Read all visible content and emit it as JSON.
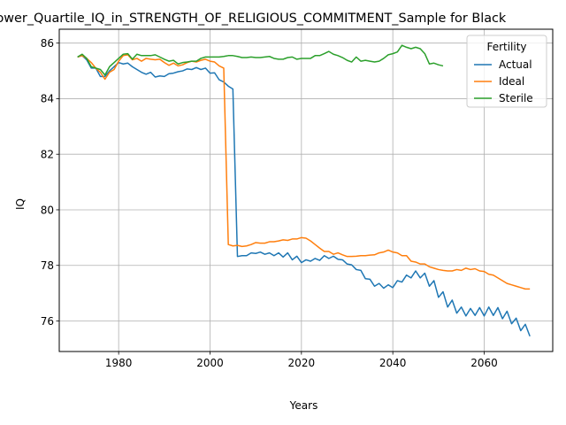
{
  "chart_data": {
    "type": "line",
    "title": "Lower_Quartile_IQ_in_STRENGTH_OF_RELIGIOUS_COMMITMENT_Sample for Black",
    "xlabel": "Years",
    "ylabel": "IQ",
    "xlim": [
      1967,
      2075
    ],
    "ylim": [
      74.9,
      86.5
    ],
    "xticks": [
      1980,
      2000,
      2020,
      2040,
      2060
    ],
    "yticks": [
      76,
      78,
      80,
      82,
      84,
      86
    ],
    "grid": true,
    "legend": {
      "title": "Fertility",
      "position": "top-right"
    },
    "series": [
      {
        "name": "Actual",
        "color": "#1f77b4",
        "x": [
          1971,
          1972,
          1973,
          1974,
          1975,
          1976,
          1977,
          1978,
          1979,
          1980,
          1981,
          1982,
          1983,
          1984,
          1985,
          1986,
          1987,
          1988,
          1989,
          1990,
          1991,
          1992,
          1993,
          1994,
          1995,
          1996,
          1997,
          1998,
          1999,
          2000,
          2001,
          2002,
          2003,
          2004,
          2005,
          2006,
          2007,
          2008,
          2009,
          2010,
          2011,
          2012,
          2013,
          2014,
          2015,
          2016,
          2017,
          2018,
          2019,
          2020,
          2021,
          2022,
          2023,
          2024,
          2025,
          2026,
          2027,
          2028,
          2029,
          2030,
          2031,
          2032,
          2033,
          2034,
          2035,
          2036,
          2037,
          2038,
          2039,
          2040,
          2041,
          2042,
          2043,
          2044,
          2045,
          2046,
          2047,
          2048,
          2049,
          2050,
          2051,
          2052,
          2053,
          2054,
          2055,
          2056,
          2057,
          2058,
          2059,
          2060,
          2061,
          2062,
          2063,
          2064,
          2065,
          2066,
          2067,
          2068,
          2069,
          2070
        ],
        "y": [
          85.5,
          85.55,
          85.4,
          85.1,
          85.1,
          84.8,
          84.8,
          85.0,
          85.15,
          85.3,
          85.25,
          85.28,
          85.15,
          85.05,
          84.95,
          84.88,
          84.95,
          84.78,
          84.82,
          84.8,
          84.9,
          84.92,
          84.97,
          85.0,
          85.07,
          85.05,
          85.12,
          85.05,
          85.1,
          84.92,
          84.93,
          84.68,
          84.6,
          84.45,
          84.35,
          78.32,
          78.35,
          78.35,
          78.45,
          78.43,
          78.48,
          78.4,
          78.45,
          78.35,
          78.45,
          78.3,
          78.45,
          78.2,
          78.33,
          78.1,
          78.2,
          78.15,
          78.25,
          78.18,
          78.35,
          78.25,
          78.33,
          78.22,
          78.2,
          78.05,
          78.02,
          77.85,
          77.82,
          77.52,
          77.5,
          77.25,
          77.35,
          77.18,
          77.3,
          77.2,
          77.45,
          77.4,
          77.65,
          77.55,
          77.8,
          77.55,
          77.72,
          77.25,
          77.45,
          76.85,
          77.05,
          76.5,
          76.75,
          76.28,
          76.5,
          76.18,
          76.45,
          76.2,
          76.48,
          76.18,
          76.5,
          76.2,
          76.48,
          76.08,
          76.35,
          75.9,
          76.1,
          75.65,
          75.88,
          75.45
        ]
      },
      {
        "name": "Ideal",
        "color": "#ff7f0e",
        "x": [
          1971,
          1972,
          1973,
          1974,
          1975,
          1976,
          1977,
          1978,
          1979,
          1980,
          1981,
          1982,
          1983,
          1984,
          1985,
          1986,
          1987,
          1988,
          1989,
          1990,
          1991,
          1992,
          1993,
          1994,
          1995,
          1996,
          1997,
          1998,
          1999,
          2000,
          2001,
          2002,
          2003,
          2004,
          2005,
          2006,
          2007,
          2008,
          2009,
          2010,
          2011,
          2012,
          2013,
          2014,
          2015,
          2016,
          2017,
          2018,
          2019,
          2020,
          2021,
          2022,
          2023,
          2024,
          2025,
          2026,
          2027,
          2028,
          2029,
          2030,
          2031,
          2032,
          2033,
          2034,
          2035,
          2036,
          2037,
          2038,
          2039,
          2040,
          2041,
          2042,
          2043,
          2044,
          2045,
          2046,
          2047,
          2048,
          2049,
          2050,
          2051,
          2052,
          2053,
          2054,
          2055,
          2056,
          2057,
          2058,
          2059,
          2060,
          2061,
          2062,
          2063,
          2064,
          2065,
          2066,
          2067,
          2068,
          2069,
          2070
        ],
        "y": [
          85.5,
          85.55,
          85.45,
          85.3,
          85.1,
          84.95,
          84.7,
          84.95,
          85.05,
          85.35,
          85.55,
          85.58,
          85.4,
          85.45,
          85.35,
          85.45,
          85.42,
          85.4,
          85.42,
          85.3,
          85.2,
          85.28,
          85.18,
          85.22,
          85.3,
          85.35,
          85.32,
          85.38,
          85.42,
          85.35,
          85.32,
          85.18,
          85.1,
          78.75,
          78.7,
          78.72,
          78.68,
          78.7,
          78.75,
          78.82,
          78.8,
          78.8,
          78.85,
          78.85,
          78.88,
          78.92,
          78.9,
          78.95,
          78.95,
          79.0,
          78.98,
          78.88,
          78.75,
          78.62,
          78.5,
          78.5,
          78.4,
          78.45,
          78.38,
          78.32,
          78.32,
          78.33,
          78.35,
          78.35,
          78.37,
          78.38,
          78.45,
          78.48,
          78.55,
          78.48,
          78.45,
          78.35,
          78.35,
          78.15,
          78.12,
          78.05,
          78.05,
          77.95,
          77.9,
          77.85,
          77.82,
          77.8,
          77.8,
          77.85,
          77.82,
          77.9,
          77.85,
          77.88,
          77.8,
          77.78,
          77.68,
          77.65,
          77.55,
          77.45,
          77.35,
          77.3,
          77.25,
          77.2,
          77.15,
          77.15
        ]
      },
      {
        "name": "Sterile",
        "color": "#2ca02c",
        "x": [
          1971,
          1972,
          1973,
          1974,
          1975,
          1976,
          1977,
          1978,
          1979,
          1980,
          1981,
          1982,
          1983,
          1984,
          1985,
          1986,
          1987,
          1988,
          1989,
          1990,
          1991,
          1992,
          1993,
          1994,
          1995,
          1996,
          1997,
          1998,
          1999,
          2000,
          2001,
          2002,
          2003,
          2004,
          2005,
          2006,
          2007,
          2008,
          2009,
          2010,
          2011,
          2012,
          2013,
          2014,
          2015,
          2016,
          2017,
          2018,
          2019,
          2020,
          2021,
          2022,
          2023,
          2024,
          2025,
          2026,
          2027,
          2028,
          2029,
          2030,
          2031,
          2032,
          2033,
          2034,
          2035,
          2036,
          2037,
          2038,
          2039,
          2040,
          2041,
          2042,
          2043,
          2044,
          2045,
          2046,
          2047,
          2048,
          2049,
          2050,
          2051
        ],
        "y": [
          85.5,
          85.6,
          85.45,
          85.15,
          85.1,
          85.05,
          84.85,
          85.15,
          85.3,
          85.45,
          85.6,
          85.62,
          85.42,
          85.6,
          85.55,
          85.55,
          85.55,
          85.58,
          85.5,
          85.42,
          85.35,
          85.38,
          85.25,
          85.3,
          85.32,
          85.35,
          85.35,
          85.45,
          85.5,
          85.5,
          85.5,
          85.5,
          85.52,
          85.55,
          85.55,
          85.52,
          85.48,
          85.48,
          85.5,
          85.48,
          85.48,
          85.5,
          85.52,
          85.45,
          85.42,
          85.42,
          85.48,
          85.5,
          85.42,
          85.45,
          85.45,
          85.45,
          85.55,
          85.55,
          85.62,
          85.7,
          85.6,
          85.55,
          85.48,
          85.38,
          85.32,
          85.5,
          85.35,
          85.38,
          85.35,
          85.32,
          85.35,
          85.45,
          85.58,
          85.62,
          85.68,
          85.92,
          85.85,
          85.8,
          85.85,
          85.8,
          85.62,
          85.25,
          85.28,
          85.22,
          85.18
        ]
      }
    ]
  }
}
